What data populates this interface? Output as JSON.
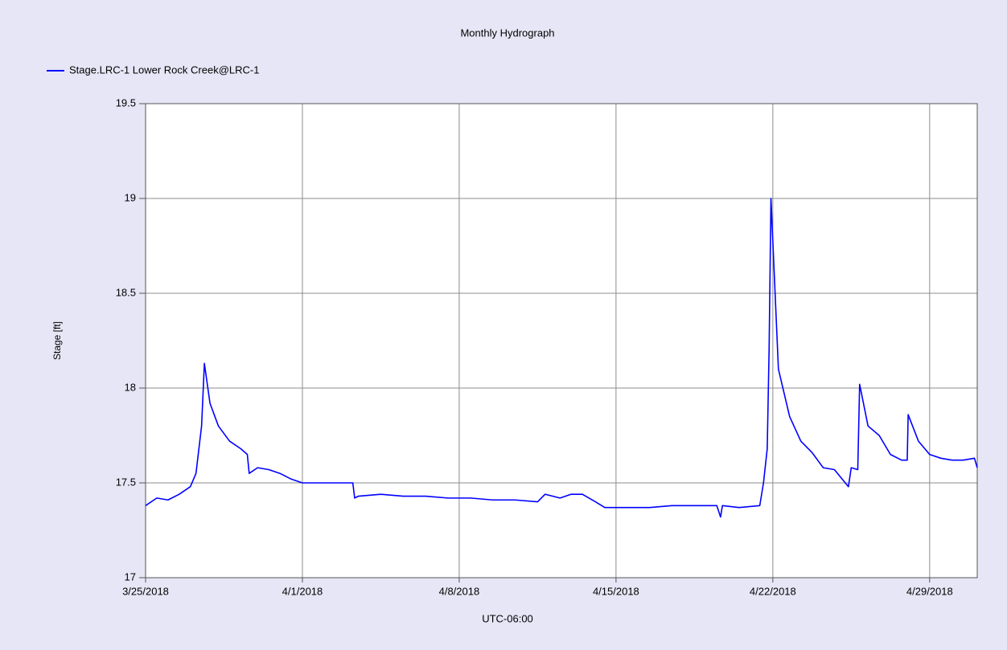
{
  "chart_data": {
    "type": "line",
    "title": "Monthly Hydrograph",
    "xlabel": "UTC-06:00",
    "ylabel": "Stage [ft]",
    "legend": "top-left",
    "grid": true,
    "x": [
      "2018-03-25T00:00",
      "2018-03-25T12:00",
      "2018-03-26T00:00",
      "2018-03-26T12:00",
      "2018-03-27T00:00",
      "2018-03-27T06:00",
      "2018-03-27T12:00",
      "2018-03-27T15:00",
      "2018-03-27T21:00",
      "2018-03-28T06:00",
      "2018-03-28T18:00",
      "2018-03-29T06:00",
      "2018-03-29T13:00",
      "2018-03-29T15:00",
      "2018-03-30T00:00",
      "2018-03-30T12:00",
      "2018-03-31T00:00",
      "2018-03-31T12:00",
      "2018-04-01T00:00",
      "2018-04-01T12:00",
      "2018-04-02T00:00",
      "2018-04-02T12:00",
      "2018-04-03T06:00",
      "2018-04-03T08:00",
      "2018-04-03T12:00",
      "2018-04-04T12:00",
      "2018-04-05T12:00",
      "2018-04-06T12:00",
      "2018-04-07T12:00",
      "2018-04-08T12:00",
      "2018-04-09T12:00",
      "2018-04-10T12:00",
      "2018-04-11T12:00",
      "2018-04-11T20:00",
      "2018-04-12T12:00",
      "2018-04-13T00:00",
      "2018-04-13T12:00",
      "2018-04-14T02:00",
      "2018-04-14T12:00",
      "2018-04-15T12:00",
      "2018-04-16T12:00",
      "2018-04-17T12:00",
      "2018-04-18T12:00",
      "2018-04-19T12:00",
      "2018-04-19T16:00",
      "2018-04-19T18:00",
      "2018-04-20T12:00",
      "2018-04-21T10:00",
      "2018-04-21T14:00",
      "2018-04-21T18:00",
      "2018-04-21T20:00",
      "2018-04-21T22:00",
      "2018-04-22T06:00",
      "2018-04-22T18:00",
      "2018-04-23T06:00",
      "2018-04-23T18:00",
      "2018-04-24T06:00",
      "2018-04-24T18:00",
      "2018-04-25T09:00",
      "2018-04-25T12:00",
      "2018-04-25T19:00",
      "2018-04-25T21:00",
      "2018-04-26T06:00",
      "2018-04-26T18:00",
      "2018-04-27T06:00",
      "2018-04-27T18:00",
      "2018-04-28T00:00",
      "2018-04-28T01:00",
      "2018-04-28T12:00",
      "2018-04-29T00:00",
      "2018-04-29T12:00",
      "2018-04-30T00:00",
      "2018-04-30T12:00",
      "2018-05-01T00:00",
      "2018-05-01T03:00"
    ],
    "series": [
      {
        "name": "Stage.LRC-1 Lower Rock Creek@LRC-1",
        "color": "#0000ff",
        "values": [
          17.38,
          17.42,
          17.41,
          17.44,
          17.48,
          17.55,
          17.8,
          18.13,
          17.92,
          17.8,
          17.72,
          17.68,
          17.65,
          17.55,
          17.58,
          17.57,
          17.55,
          17.52,
          17.5,
          17.5,
          17.5,
          17.5,
          17.5,
          17.42,
          17.43,
          17.44,
          17.43,
          17.43,
          17.42,
          17.42,
          17.41,
          17.41,
          17.4,
          17.44,
          17.42,
          17.44,
          17.44,
          17.4,
          17.37,
          17.37,
          17.37,
          17.38,
          17.38,
          17.38,
          17.32,
          17.38,
          17.37,
          17.38,
          17.5,
          17.68,
          18.2,
          19.0,
          18.1,
          17.85,
          17.72,
          17.66,
          17.58,
          17.57,
          17.48,
          17.58,
          17.57,
          18.02,
          17.8,
          17.75,
          17.65,
          17.62,
          17.62,
          17.86,
          17.72,
          17.65,
          17.63,
          17.62,
          17.62,
          17.63,
          17.58
        ]
      }
    ],
    "xlim": [
      "2018-03-25T00:00",
      "2018-05-01T03:00"
    ],
    "xticks": [
      {
        "value": "2018-03-25T00:00",
        "label": "3/25/2018"
      },
      {
        "value": "2018-04-01T00:00",
        "label": "4/1/2018"
      },
      {
        "value": "2018-04-08T00:00",
        "label": "4/8/2018"
      },
      {
        "value": "2018-04-15T00:00",
        "label": "4/15/2018"
      },
      {
        "value": "2018-04-22T00:00",
        "label": "4/22/2018"
      },
      {
        "value": "2018-04-29T00:00",
        "label": "4/29/2018"
      }
    ],
    "ylim": [
      17,
      19.5
    ],
    "yticks": [
      17,
      17.5,
      18,
      18.5,
      19,
      19.5
    ]
  }
}
